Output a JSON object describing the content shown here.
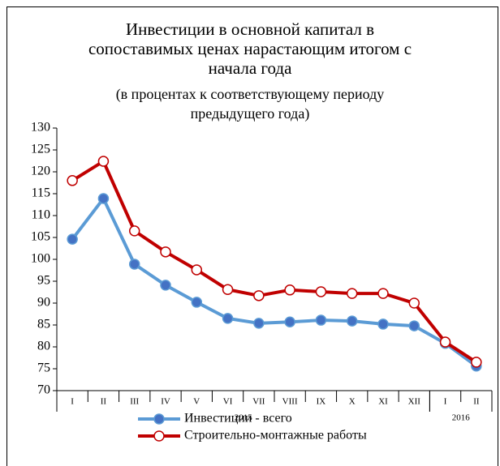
{
  "chart_data": {
    "type": "line",
    "title": "Инвестиции в основной капитал в сопоставимых ценах нарастающим итогом с начала года",
    "subtitle": "(в процентах к соответствующему периоду предыдущего года)",
    "category_groups": [
      {
        "label": "2015",
        "categories": [
          "I",
          "II",
          "III",
          "IV",
          "V",
          "VI",
          "VII",
          "VIII",
          "IX",
          "X",
          "XI",
          "XII"
        ]
      },
      {
        "label": "2016",
        "categories": [
          "I",
          "II"
        ]
      }
    ],
    "series": [
      {
        "name": "Инвестиции - всего",
        "color": "#5b9bd5",
        "marker_fill": "#4472c4",
        "values": [
          104.6,
          113.9,
          98.9,
          94.1,
          90.2,
          86.5,
          85.4,
          85.7,
          86.1,
          85.9,
          85.2,
          84.8,
          80.8,
          75.6
        ]
      },
      {
        "name": "Строительно-монтажные работы",
        "color": "#c00000",
        "marker_fill": "#ffffff",
        "values": [
          118,
          122.4,
          106.5,
          101.7,
          97.6,
          93.1,
          91.7,
          93,
          92.6,
          92.2,
          92.2,
          90,
          81.1,
          76.5
        ]
      }
    ],
    "ylim": [
      70,
      130
    ],
    "yticks": [
      70,
      75,
      80,
      85,
      90,
      95,
      100,
      105,
      110,
      115,
      120,
      125,
      130
    ]
  }
}
